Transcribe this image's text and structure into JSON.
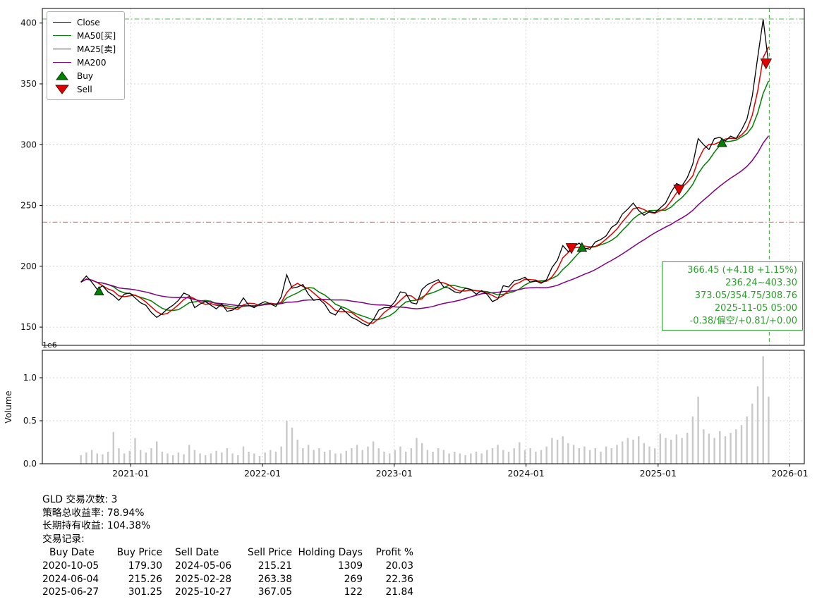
{
  "legend": {
    "items": [
      {
        "label": "Close",
        "color": "#000000",
        "marker": "line"
      },
      {
        "label": "MA50[买]",
        "color": "#008000",
        "marker": "line"
      },
      {
        "label": "MA25[卖]",
        "color": "#dd0000",
        "marker": "line"
      },
      {
        "label": "MA200",
        "color": "#800080",
        "marker": "line"
      },
      {
        "label": "Buy",
        "color": "#008000",
        "marker": "triangle-up"
      },
      {
        "label": "Sell",
        "color": "#e00000",
        "marker": "triangle-down"
      }
    ]
  },
  "annotation": {
    "color": "#2ca02c",
    "lines": [
      "366.45 (+4.18 +1.15%)",
      "236.24~403.30",
      "373.05/354.75/308.76",
      "2025-11-05 05:00",
      "-0.38/偏空/+0.81/+0.00"
    ]
  },
  "summary": {
    "lines": [
      "GLD 交易次数: 3",
      "策略总收益率: 78.94%",
      "长期持有收益: 104.38%",
      "交易记录:"
    ]
  },
  "trade_table": {
    "headers": [
      "Buy Date",
      "Buy Price",
      "Sell Date",
      "Sell Price",
      "Holding Days",
      "Profit %"
    ],
    "rows": [
      [
        "2020-10-05",
        "179.30",
        "2024-05-06",
        "215.21",
        "1309",
        "20.03"
      ],
      [
        "2024-06-04",
        "215.26",
        "2025-02-28",
        "263.38",
        "269",
        "22.36"
      ],
      [
        "2025-06-27",
        "301.25",
        "2025-10-27",
        "367.05",
        "122",
        "21.84"
      ]
    ]
  },
  "chart_data": {
    "type": "line",
    "title": "",
    "symbol": "GLD",
    "x_start": "2020-08-16",
    "step_days": 15,
    "xlim": [
      "2020-05-01",
      "2026-02-10"
    ],
    "ylim": [
      135,
      412
    ],
    "yticks": [
      150,
      200,
      250,
      300,
      350,
      400
    ],
    "xticks": [
      "2021-01",
      "2022-01",
      "2023-01",
      "2024-01",
      "2025-01",
      "2026-01"
    ],
    "close": [
      187,
      192,
      187,
      181,
      184,
      179,
      176,
      172,
      177,
      178,
      174,
      170,
      168,
      162,
      158,
      161,
      165,
      168,
      172,
      178,
      176,
      166,
      169,
      171,
      168,
      165,
      169,
      163,
      164,
      167,
      174,
      168,
      166,
      169,
      171,
      169,
      167,
      175,
      193,
      182,
      183,
      185,
      177,
      172,
      173,
      169,
      162,
      160,
      166,
      162,
      158,
      156,
      153,
      151,
      156,
      164,
      166,
      166,
      171,
      179,
      178,
      170,
      169,
      181,
      185,
      187,
      189,
      183,
      182,
      179,
      178,
      182,
      181,
      177,
      180,
      177,
      171,
      173,
      184,
      183,
      188,
      189,
      191,
      187,
      188,
      186,
      189,
      199,
      205,
      217,
      212,
      216,
      219,
      215,
      214,
      220,
      222,
      225,
      232,
      235,
      243,
      247,
      252,
      246,
      242,
      245,
      244,
      248,
      252,
      261,
      268,
      266,
      273,
      284,
      305,
      300,
      296,
      305,
      306,
      303,
      307,
      305,
      312,
      321,
      340,
      372,
      403,
      366.45
    ],
    "ma_series": [
      {
        "name": "MA50[买]",
        "color": "#008000",
        "window": 6
      },
      {
        "name": "MA25[卖]",
        "color": "#dd0000",
        "window": 3
      },
      {
        "name": "MA200",
        "color": "#800080",
        "window": 20
      }
    ],
    "volume": {
      "ylabel": "Volume",
      "offset_label": "1e6",
      "color": "#c9c9c9",
      "ylim": [
        0,
        1.32
      ],
      "yticks": [
        0,
        0.5,
        1
      ],
      "values": [
        0.1,
        0.13,
        0.16,
        0.12,
        0.11,
        0.14,
        0.37,
        0.18,
        0.12,
        0.15,
        0.3,
        0.16,
        0.13,
        0.18,
        0.26,
        0.14,
        0.12,
        0.1,
        0.13,
        0.11,
        0.22,
        0.16,
        0.12,
        0.1,
        0.12,
        0.15,
        0.13,
        0.18,
        0.12,
        0.1,
        0.2,
        0.14,
        0.12,
        0.09,
        0.13,
        0.16,
        0.14,
        0.2,
        0.5,
        0.42,
        0.28,
        0.18,
        0.22,
        0.16,
        0.18,
        0.14,
        0.16,
        0.12,
        0.12,
        0.15,
        0.18,
        0.22,
        0.16,
        0.2,
        0.26,
        0.18,
        0.14,
        0.12,
        0.16,
        0.2,
        0.14,
        0.18,
        0.3,
        0.24,
        0.16,
        0.14,
        0.18,
        0.16,
        0.12,
        0.14,
        0.12,
        0.1,
        0.12,
        0.14,
        0.12,
        0.16,
        0.18,
        0.22,
        0.16,
        0.14,
        0.18,
        0.25,
        0.16,
        0.18,
        0.14,
        0.16,
        0.2,
        0.3,
        0.28,
        0.32,
        0.24,
        0.22,
        0.18,
        0.2,
        0.16,
        0.18,
        0.14,
        0.2,
        0.18,
        0.22,
        0.26,
        0.3,
        0.28,
        0.32,
        0.24,
        0.2,
        0.18,
        0.35,
        0.3,
        0.28,
        0.34,
        0.3,
        0.36,
        0.55,
        0.78,
        0.4,
        0.35,
        0.3,
        0.38,
        0.32,
        0.36,
        0.4,
        0.45,
        0.55,
        0.7,
        0.9,
        1.25,
        0.78
      ]
    },
    "hlines": [
      {
        "value": 403.3,
        "color": "#2ca02c",
        "style": "dashdot"
      },
      {
        "value": 236.24,
        "color": "#e05555",
        "style": "dashdot"
      }
    ],
    "vline": {
      "date": "2025-11-05",
      "color": "#2ca02c",
      "style": "dashed"
    },
    "markers": [
      {
        "type": "buy",
        "date": "2020-10-05",
        "price": 179.3
      },
      {
        "type": "sell",
        "date": "2024-05-06",
        "price": 215.21
      },
      {
        "type": "buy",
        "date": "2024-06-04",
        "price": 215.26
      },
      {
        "type": "sell",
        "date": "2025-02-28",
        "price": 263.38
      },
      {
        "type": "buy",
        "date": "2025-06-27",
        "price": 301.25
      },
      {
        "type": "sell",
        "date": "2025-10-27",
        "price": 367.05
      }
    ],
    "series_colors": {
      "close": "#000000",
      "buy_marker": "#008000",
      "sell_marker": "#e00000"
    }
  }
}
